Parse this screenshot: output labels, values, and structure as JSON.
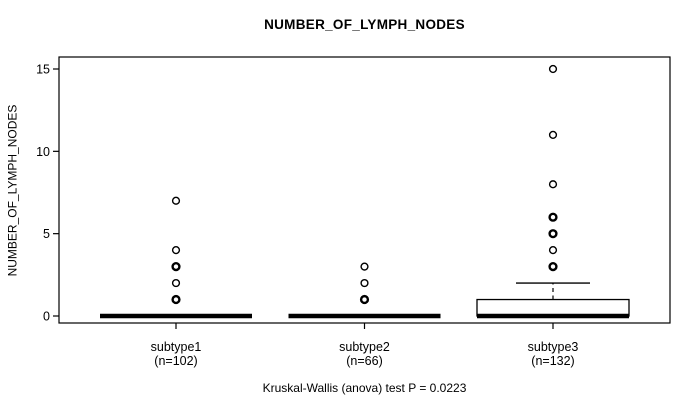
{
  "title": "NUMBER_OF_LYMPH_NODES",
  "colors": {
    "foreground": "#000000",
    "background": "#ffffff"
  },
  "chart_data": {
    "type": "boxplot",
    "title": "NUMBER_OF_LYMPH_NODES",
    "ylabel": "NUMBER_OF_LYMPH_NODES",
    "xlabel": "",
    "caption": "Kruskal-Wallis (anova) test P = 0.0223",
    "ylim": [
      0,
      15
    ],
    "yticks": [
      0,
      5,
      10,
      15
    ],
    "grid": false,
    "legend": false,
    "groups": [
      {
        "label": "subtype1",
        "sublabel": "(n=102)",
        "n": 102,
        "stats": {
          "lower_whisker": 0,
          "q1": 0,
          "median": 0,
          "q3": 0,
          "upper_whisker": 0
        },
        "outliers": [
          {
            "value": 1,
            "bold": true
          },
          {
            "value": 2,
            "bold": false
          },
          {
            "value": 3,
            "bold": true
          },
          {
            "value": 4,
            "bold": false
          },
          {
            "value": 7,
            "bold": false
          }
        ]
      },
      {
        "label": "subtype2",
        "sublabel": "(n=66)",
        "n": 66,
        "stats": {
          "lower_whisker": 0,
          "q1": 0,
          "median": 0,
          "q3": 0,
          "upper_whisker": 0
        },
        "outliers": [
          {
            "value": 1,
            "bold": true
          },
          {
            "value": 2,
            "bold": false
          },
          {
            "value": 3,
            "bold": false
          }
        ]
      },
      {
        "label": "subtype3",
        "sublabel": "(n=132)",
        "n": 132,
        "stats": {
          "lower_whisker": 0,
          "q1": 0,
          "median": 0,
          "q3": 1,
          "upper_whisker": 2
        },
        "outliers": [
          {
            "value": 3,
            "bold": true
          },
          {
            "value": 4,
            "bold": false
          },
          {
            "value": 5,
            "bold": true
          },
          {
            "value": 6,
            "bold": true
          },
          {
            "value": 8,
            "bold": false
          },
          {
            "value": 11,
            "bold": false
          },
          {
            "value": 15,
            "bold": false
          }
        ]
      }
    ],
    "statistical_test": {
      "name": "Kruskal-Wallis (anova) test",
      "p_value": "0.0223"
    }
  }
}
